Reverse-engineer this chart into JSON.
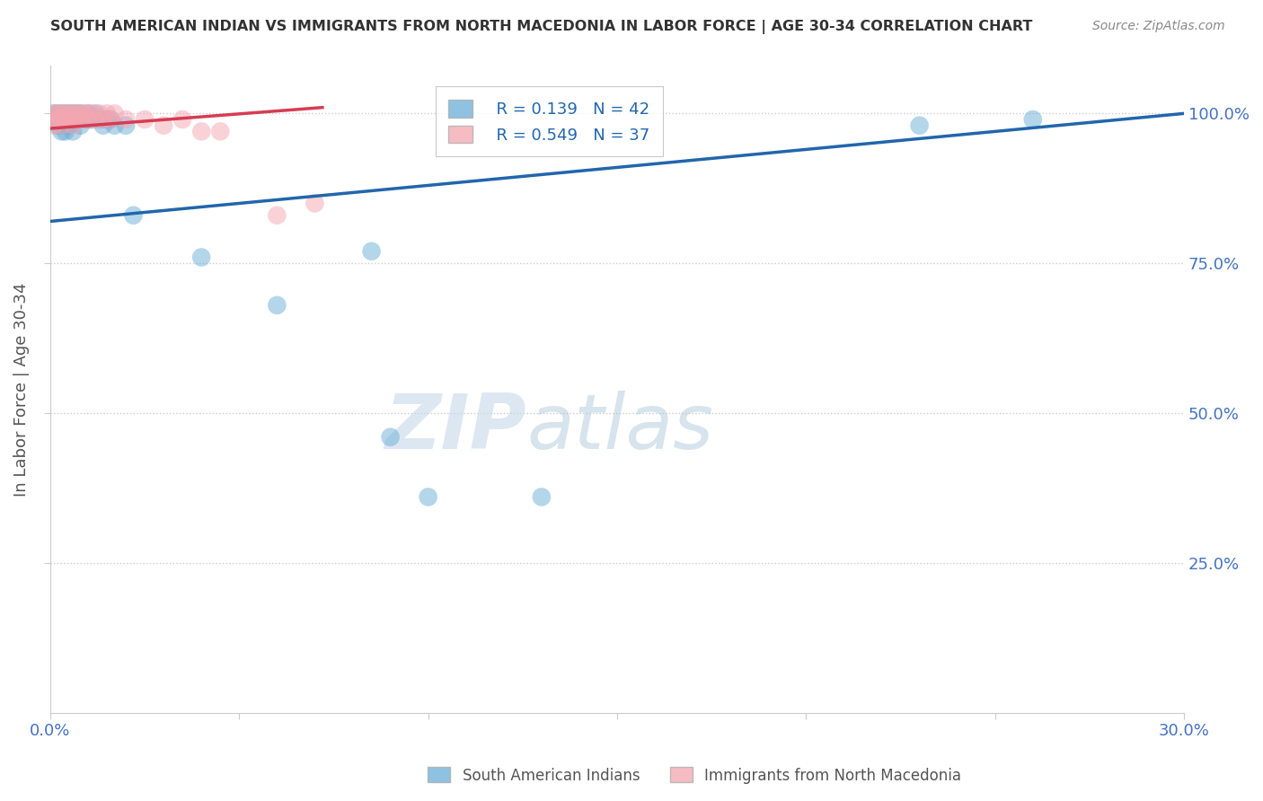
{
  "title": "SOUTH AMERICAN INDIAN VS IMMIGRANTS FROM NORTH MACEDONIA IN LABOR FORCE | AGE 30-34 CORRELATION CHART",
  "source": "Source: ZipAtlas.com",
  "ylabel": "In Labor Force | Age 30-34",
  "xmin": 0.0,
  "xmax": 0.3,
  "ymin": 0.0,
  "ymax": 1.08,
  "yticks": [
    0.25,
    0.5,
    0.75,
    1.0
  ],
  "ytick_labels": [
    "25.0%",
    "50.0%",
    "75.0%",
    "100.0%"
  ],
  "xticks": [
    0.0,
    0.05,
    0.1,
    0.15,
    0.2,
    0.25,
    0.3
  ],
  "xtick_labels": [
    "0.0%",
    "",
    "",
    "",
    "",
    "",
    "30.0%"
  ],
  "blue_color": "#6aaed6",
  "pink_color": "#f4a6b0",
  "blue_line_color": "#2166ac",
  "pink_line_color": "#d63c52",
  "legend_R1": "R = 0.139",
  "legend_N1": "N = 42",
  "legend_R2": "R = 0.549",
  "legend_N2": "N = 37",
  "legend_label1": "South American Indians",
  "legend_label2": "Immigrants from North Macedonia",
  "blue_scatter_x": [
    0.001,
    0.001,
    0.002,
    0.002,
    0.002,
    0.003,
    0.003,
    0.003,
    0.003,
    0.004,
    0.004,
    0.004,
    0.005,
    0.005,
    0.005,
    0.006,
    0.006,
    0.006,
    0.007,
    0.007,
    0.008,
    0.008,
    0.009,
    0.01,
    0.01,
    0.011,
    0.012,
    0.013,
    0.014,
    0.015,
    0.016,
    0.017,
    0.02,
    0.022,
    0.04,
    0.06,
    0.085,
    0.09,
    0.1,
    0.13,
    0.23,
    0.26
  ],
  "blue_scatter_y": [
    1.0,
    0.99,
    1.0,
    0.99,
    0.98,
    1.0,
    0.99,
    0.98,
    0.97,
    1.0,
    0.99,
    0.97,
    1.0,
    0.99,
    0.98,
    1.0,
    0.99,
    0.97,
    1.0,
    0.99,
    1.0,
    0.98,
    0.99,
    1.0,
    0.99,
    0.99,
    1.0,
    0.99,
    0.98,
    0.99,
    0.99,
    0.98,
    0.98,
    0.83,
    0.76,
    0.68,
    0.77,
    0.46,
    0.36,
    0.36,
    0.98,
    0.99
  ],
  "pink_scatter_x": [
    0.001,
    0.001,
    0.001,
    0.002,
    0.002,
    0.003,
    0.003,
    0.003,
    0.004,
    0.004,
    0.005,
    0.005,
    0.006,
    0.006,
    0.006,
    0.007,
    0.007,
    0.008,
    0.008,
    0.009,
    0.01,
    0.01,
    0.011,
    0.012,
    0.013,
    0.014,
    0.015,
    0.016,
    0.017,
    0.02,
    0.025,
    0.03,
    0.035,
    0.04,
    0.045,
    0.06,
    0.07
  ],
  "pink_scatter_y": [
    1.0,
    0.99,
    0.98,
    1.0,
    0.99,
    1.0,
    0.99,
    0.98,
    1.0,
    0.99,
    1.0,
    0.99,
    1.0,
    0.99,
    0.98,
    1.0,
    0.99,
    1.0,
    0.99,
    1.0,
    1.0,
    0.99,
    1.0,
    0.99,
    1.0,
    0.99,
    1.0,
    0.99,
    1.0,
    0.99,
    0.99,
    0.98,
    0.99,
    0.97,
    0.97,
    0.83,
    0.85
  ],
  "blue_line_x0": 0.0,
  "blue_line_x1": 0.3,
  "blue_line_y0": 0.82,
  "blue_line_y1": 1.0,
  "pink_line_x0": 0.0,
  "pink_line_x1": 0.072,
  "pink_line_y0": 0.975,
  "pink_line_y1": 1.01,
  "watermark_zip": "ZIP",
  "watermark_atlas": "atlas",
  "background_color": "#ffffff",
  "grid_color": "#cccccc",
  "title_color": "#333333",
  "axis_label_color": "#555555",
  "tick_color_blue": "#4472c4",
  "tick_color_right": "#4472c4",
  "source_color": "#888888"
}
